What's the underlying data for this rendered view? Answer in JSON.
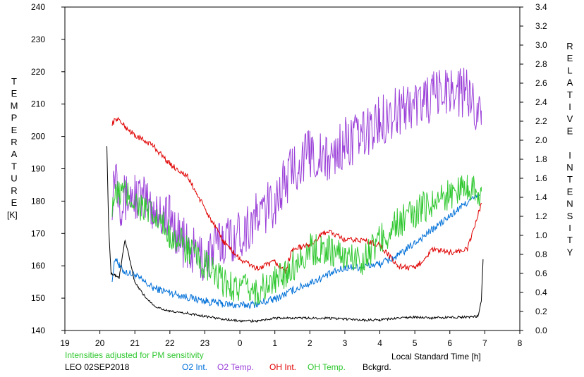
{
  "chart_data": {
    "type": "line",
    "y_left_label": "TEMPERATURE",
    "y_left_unit": "[K]",
    "y_right_label": "RELATIVE INTENSITY",
    "x_label": "Local Standard Time [h]",
    "x_tick_labels": [
      "19",
      "20",
      "21",
      "22",
      "23",
      "0",
      "1",
      "2",
      "3",
      "4",
      "5",
      "6",
      "7",
      "8"
    ],
    "x_range": [
      19,
      32
    ],
    "y_left_range": [
      140,
      240
    ],
    "y_left_ticks": [
      140,
      150,
      160,
      170,
      180,
      190,
      200,
      210,
      220,
      230,
      240
    ],
    "y_right_range": [
      0.0,
      3.4
    ],
    "y_right_ticks": [
      "0.0",
      "0.2",
      "0.4",
      "0.6",
      "0.8",
      "1.0",
      "1.2",
      "1.4",
      "1.6",
      "1.8",
      "2.0",
      "2.2",
      "2.4",
      "2.6",
      "2.8",
      "3.0",
      "3.2",
      "3.4"
    ],
    "note": "Intensities adjusted for PM sensitivity",
    "station": "LEO 02SEP2018",
    "grid": false,
    "series": [
      {
        "name": "O2 Int.",
        "axis": "right",
        "color": "#0070d8",
        "noise": 0.04,
        "x": [
          20.35,
          20.45,
          20.55,
          20.7,
          21.0,
          21.5,
          22.0,
          22.5,
          23.0,
          23.5,
          24.0,
          24.5,
          25.0,
          25.5,
          26.0,
          26.5,
          27.0,
          27.5,
          28.0,
          28.5,
          29.0,
          29.5,
          30.0,
          30.5,
          30.85
        ],
        "y": [
          0.55,
          0.78,
          0.68,
          0.62,
          0.58,
          0.45,
          0.4,
          0.35,
          0.31,
          0.28,
          0.26,
          0.28,
          0.33,
          0.42,
          0.5,
          0.58,
          0.66,
          0.67,
          0.7,
          0.78,
          0.92,
          1.06,
          1.2,
          1.35,
          1.42
        ]
      },
      {
        "name": "O2 Temp.",
        "axis": "left",
        "color": "#9b40d8",
        "noise": 8,
        "x": [
          20.35,
          20.45,
          20.5,
          20.6,
          21.0,
          21.5,
          22.0,
          22.5,
          23.0,
          23.5,
          24.0,
          24.5,
          25.0,
          25.5,
          26.0,
          26.5,
          27.0,
          27.5,
          28.0,
          28.5,
          29.0,
          29.5,
          30.0,
          30.5,
          30.9
        ],
        "y": [
          182,
          192,
          186,
          180,
          182,
          178,
          175,
          165,
          162,
          168,
          170,
          175,
          180,
          190,
          195,
          192,
          198,
          200,
          205,
          208,
          210,
          212,
          215,
          213,
          208
        ]
      },
      {
        "name": "OH Int.",
        "axis": "right",
        "color": "#e00000",
        "noise": 0.03,
        "x": [
          20.35,
          20.5,
          20.7,
          21.0,
          21.5,
          22.0,
          22.5,
          23.0,
          23.5,
          24.0,
          24.5,
          25.0,
          25.3,
          25.5,
          26.0,
          26.5,
          27.0,
          27.5,
          28.0,
          28.5,
          29.0,
          29.5,
          30.0,
          30.5,
          30.9
        ],
        "y": [
          2.18,
          2.23,
          2.15,
          2.05,
          1.95,
          1.75,
          1.62,
          1.28,
          0.95,
          0.75,
          0.65,
          0.72,
          0.62,
          0.85,
          0.9,
          1.05,
          0.95,
          0.95,
          0.9,
          0.68,
          0.65,
          0.85,
          0.82,
          0.85,
          1.33
        ]
      },
      {
        "name": "OH Temp.",
        "axis": "left",
        "color": "#30c830",
        "noise": 5,
        "x": [
          20.35,
          20.6,
          21.0,
          21.5,
          22.0,
          22.5,
          23.0,
          23.5,
          24.0,
          24.5,
          25.0,
          25.5,
          26.0,
          26.5,
          27.0,
          27.5,
          28.0,
          28.5,
          29.0,
          29.5,
          30.0,
          30.5,
          30.9
        ],
        "y": [
          180,
          183,
          180,
          175,
          170,
          165,
          160,
          155,
          153,
          152,
          155,
          160,
          165,
          165,
          163,
          162,
          168,
          173,
          176,
          180,
          182,
          185,
          183
        ]
      },
      {
        "name": "Bckgrd.",
        "axis": "right",
        "color": "#000000",
        "noise": 0.012,
        "x": [
          20.2,
          20.25,
          20.32,
          20.45,
          20.55,
          20.65,
          20.72,
          20.85,
          21.0,
          21.3,
          21.6,
          22.0,
          22.5,
          23.0,
          23.5,
          24.0,
          24.5,
          25.0,
          25.5,
          26.0,
          26.5,
          27.0,
          27.5,
          28.0,
          28.5,
          29.0,
          29.5,
          30.0,
          30.5,
          30.8,
          30.9,
          30.95
        ],
        "y": [
          1.95,
          1.1,
          0.6,
          0.58,
          0.55,
          0.8,
          0.95,
          0.75,
          0.5,
          0.35,
          0.25,
          0.2,
          0.18,
          0.15,
          0.12,
          0.1,
          0.1,
          0.13,
          0.13,
          0.13,
          0.13,
          0.12,
          0.11,
          0.11,
          0.13,
          0.14,
          0.13,
          0.14,
          0.14,
          0.15,
          0.3,
          0.75
        ]
      }
    ]
  },
  "legend": [
    {
      "label": "O2 Int.",
      "color": "#0070d8"
    },
    {
      "label": "O2 Temp.",
      "color": "#9b40d8"
    },
    {
      "label": "OH Int.",
      "color": "#e00000"
    },
    {
      "label": "OH Temp.",
      "color": "#30c830"
    },
    {
      "label": "Bckgrd.",
      "color": "#000000"
    }
  ]
}
